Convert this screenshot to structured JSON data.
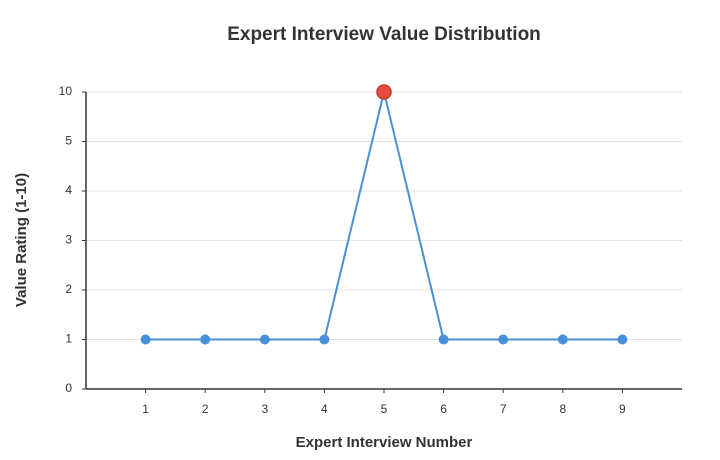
{
  "chart_data": {
    "type": "line",
    "title": "Expert Interview Value Distribution",
    "x_label": "Expert Interview Number",
    "y_label": "Value Rating (1-10)",
    "x": [
      1,
      2,
      3,
      4,
      5,
      6,
      7,
      8,
      9
    ],
    "series": [
      {
        "name": "Value Rating",
        "color": "#4a90d9",
        "values": [
          1,
          1,
          1,
          1,
          10,
          1,
          1,
          1,
          1
        ],
        "point_colors": [
          "#4a90d9",
          "#4a90d9",
          "#4a90d9",
          "#4a90d9",
          "#e74c3c",
          "#4a90d9",
          "#4a90d9",
          "#4a90d9",
          "#4a90d9"
        ]
      }
    ],
    "xlim": [
      0,
      10
    ],
    "xticks": [
      1,
      2,
      3,
      4,
      5,
      6,
      7,
      8,
      9
    ],
    "ylim": [
      0,
      10
    ],
    "yticks": [
      0,
      1,
      2,
      3,
      4,
      5,
      10
    ],
    "grid": true
  }
}
